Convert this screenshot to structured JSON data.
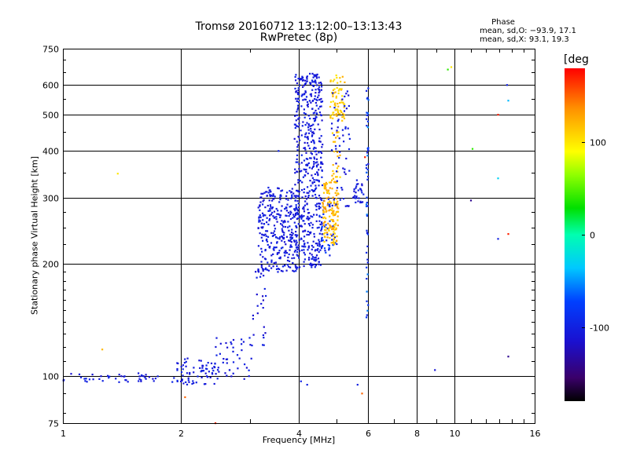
{
  "chart_data": {
    "type": "scatter",
    "title": "Tromsø 20160712 13:12:00–13:13:43",
    "subtitle": "RwPretec (8p)",
    "xlabel": "Frequency [MHz]",
    "ylabel": "Stationary phase Virtual Height [km]",
    "x_scale": "log",
    "y_scale": "log",
    "xlim": [
      1,
      16
    ],
    "ylim": [
      75,
      750
    ],
    "x_ticks": [
      1,
      2,
      4,
      6,
      8,
      10,
      16
    ],
    "y_ticks": [
      75,
      100,
      200,
      300,
      400,
      500,
      600,
      750
    ],
    "grid": true,
    "phase_box": {
      "title": "Phase",
      "line1": "mean, sd,O: −93.9, 17.1",
      "line2": "mean, sd,X:  93.1, 19.3"
    },
    "colorbar": {
      "label": "[deg",
      "range": [
        -180,
        180
      ],
      "ticks": [
        100,
        0,
        -100
      ]
    },
    "clusters": [
      {
        "x": [
          1.0,
          1.75
        ],
        "y": [
          96,
          102
        ],
        "n": 45,
        "phase": [
          -115,
          -95
        ]
      },
      {
        "x": [
          1.9,
          2.45
        ],
        "y": [
          95,
          112
        ],
        "n": 70,
        "phase": [
          -115,
          -95
        ]
      },
      {
        "x": [
          2.45,
          3.05
        ],
        "y": [
          98,
          128
        ],
        "n": 45,
        "phase": [
          -115,
          -95
        ]
      },
      {
        "x": [
          3.05,
          3.3
        ],
        "y": [
          120,
          205
        ],
        "n": 25,
        "phase": [
          -120,
          -95
        ]
      },
      {
        "x": [
          3.15,
          4.0
        ],
        "y": [
          190,
          320
        ],
        "n": 320,
        "phase": [
          -115,
          -95
        ]
      },
      {
        "x": [
          3.9,
          4.6
        ],
        "y": [
          195,
          650
        ],
        "n": 520,
        "phase": [
          -115,
          -95
        ]
      },
      {
        "x": [
          4.5,
          5.0
        ],
        "y": [
          210,
          300
        ],
        "n": 45,
        "phase": [
          -110,
          -70
        ]
      },
      {
        "x": [
          4.6,
          5.05
        ],
        "y": [
          225,
          330
        ],
        "n": 140,
        "phase": [
          105,
          135
        ]
      },
      {
        "x": [
          4.8,
          5.25
        ],
        "y": [
          480,
          640
        ],
        "n": 70,
        "phase": [
          100,
          125
        ]
      },
      {
        "x": [
          4.85,
          5.1
        ],
        "y": [
          330,
          450
        ],
        "n": 25,
        "phase": [
          105,
          130
        ]
      },
      {
        "x": [
          4.85,
          5.4
        ],
        "y": [
          280,
          600
        ],
        "n": 55,
        "phase": [
          -115,
          -95
        ]
      },
      {
        "x": [
          5.5,
          5.85
        ],
        "y": [
          290,
          340
        ],
        "n": 30,
        "phase": [
          -115,
          -95
        ]
      },
      {
        "x": [
          5.95,
          6.02
        ],
        "y": [
          140,
          600
        ],
        "n": 50,
        "phase": [
          -110,
          -50
        ]
      }
    ],
    "points": [
      {
        "x": 1.38,
        "y": 348,
        "phase": 100
      },
      {
        "x": 1.26,
        "y": 118,
        "phase": 120
      },
      {
        "x": 2.05,
        "y": 88,
        "phase": 150
      },
      {
        "x": 2.45,
        "y": 75,
        "phase": 170
      },
      {
        "x": 3.55,
        "y": 400,
        "phase": -100
      },
      {
        "x": 4.05,
        "y": 97,
        "phase": -100
      },
      {
        "x": 4.2,
        "y": 95,
        "phase": -100
      },
      {
        "x": 5.65,
        "y": 95,
        "phase": -100
      },
      {
        "x": 5.9,
        "y": 385,
        "phase": 170
      },
      {
        "x": 5.95,
        "y": 360,
        "phase": -100
      },
      {
        "x": 5.8,
        "y": 90,
        "phase": 150
      },
      {
        "x": 8.9,
        "y": 104,
        "phase": -110
      },
      {
        "x": 9.6,
        "y": 660,
        "phase": 40
      },
      {
        "x": 9.8,
        "y": 670,
        "phase": 100
      },
      {
        "x": 11.0,
        "y": 295,
        "phase": -140
      },
      {
        "x": 11.1,
        "y": 405,
        "phase": 40
      },
      {
        "x": 12.9,
        "y": 500,
        "phase": 170
      },
      {
        "x": 12.9,
        "y": 338,
        "phase": -30
      },
      {
        "x": 12.9,
        "y": 233,
        "phase": -100
      },
      {
        "x": 13.6,
        "y": 600,
        "phase": -100
      },
      {
        "x": 13.7,
        "y": 545,
        "phase": -40
      },
      {
        "x": 13.7,
        "y": 240,
        "phase": 170
      },
      {
        "x": 13.7,
        "y": 113,
        "phase": -140
      }
    ]
  }
}
